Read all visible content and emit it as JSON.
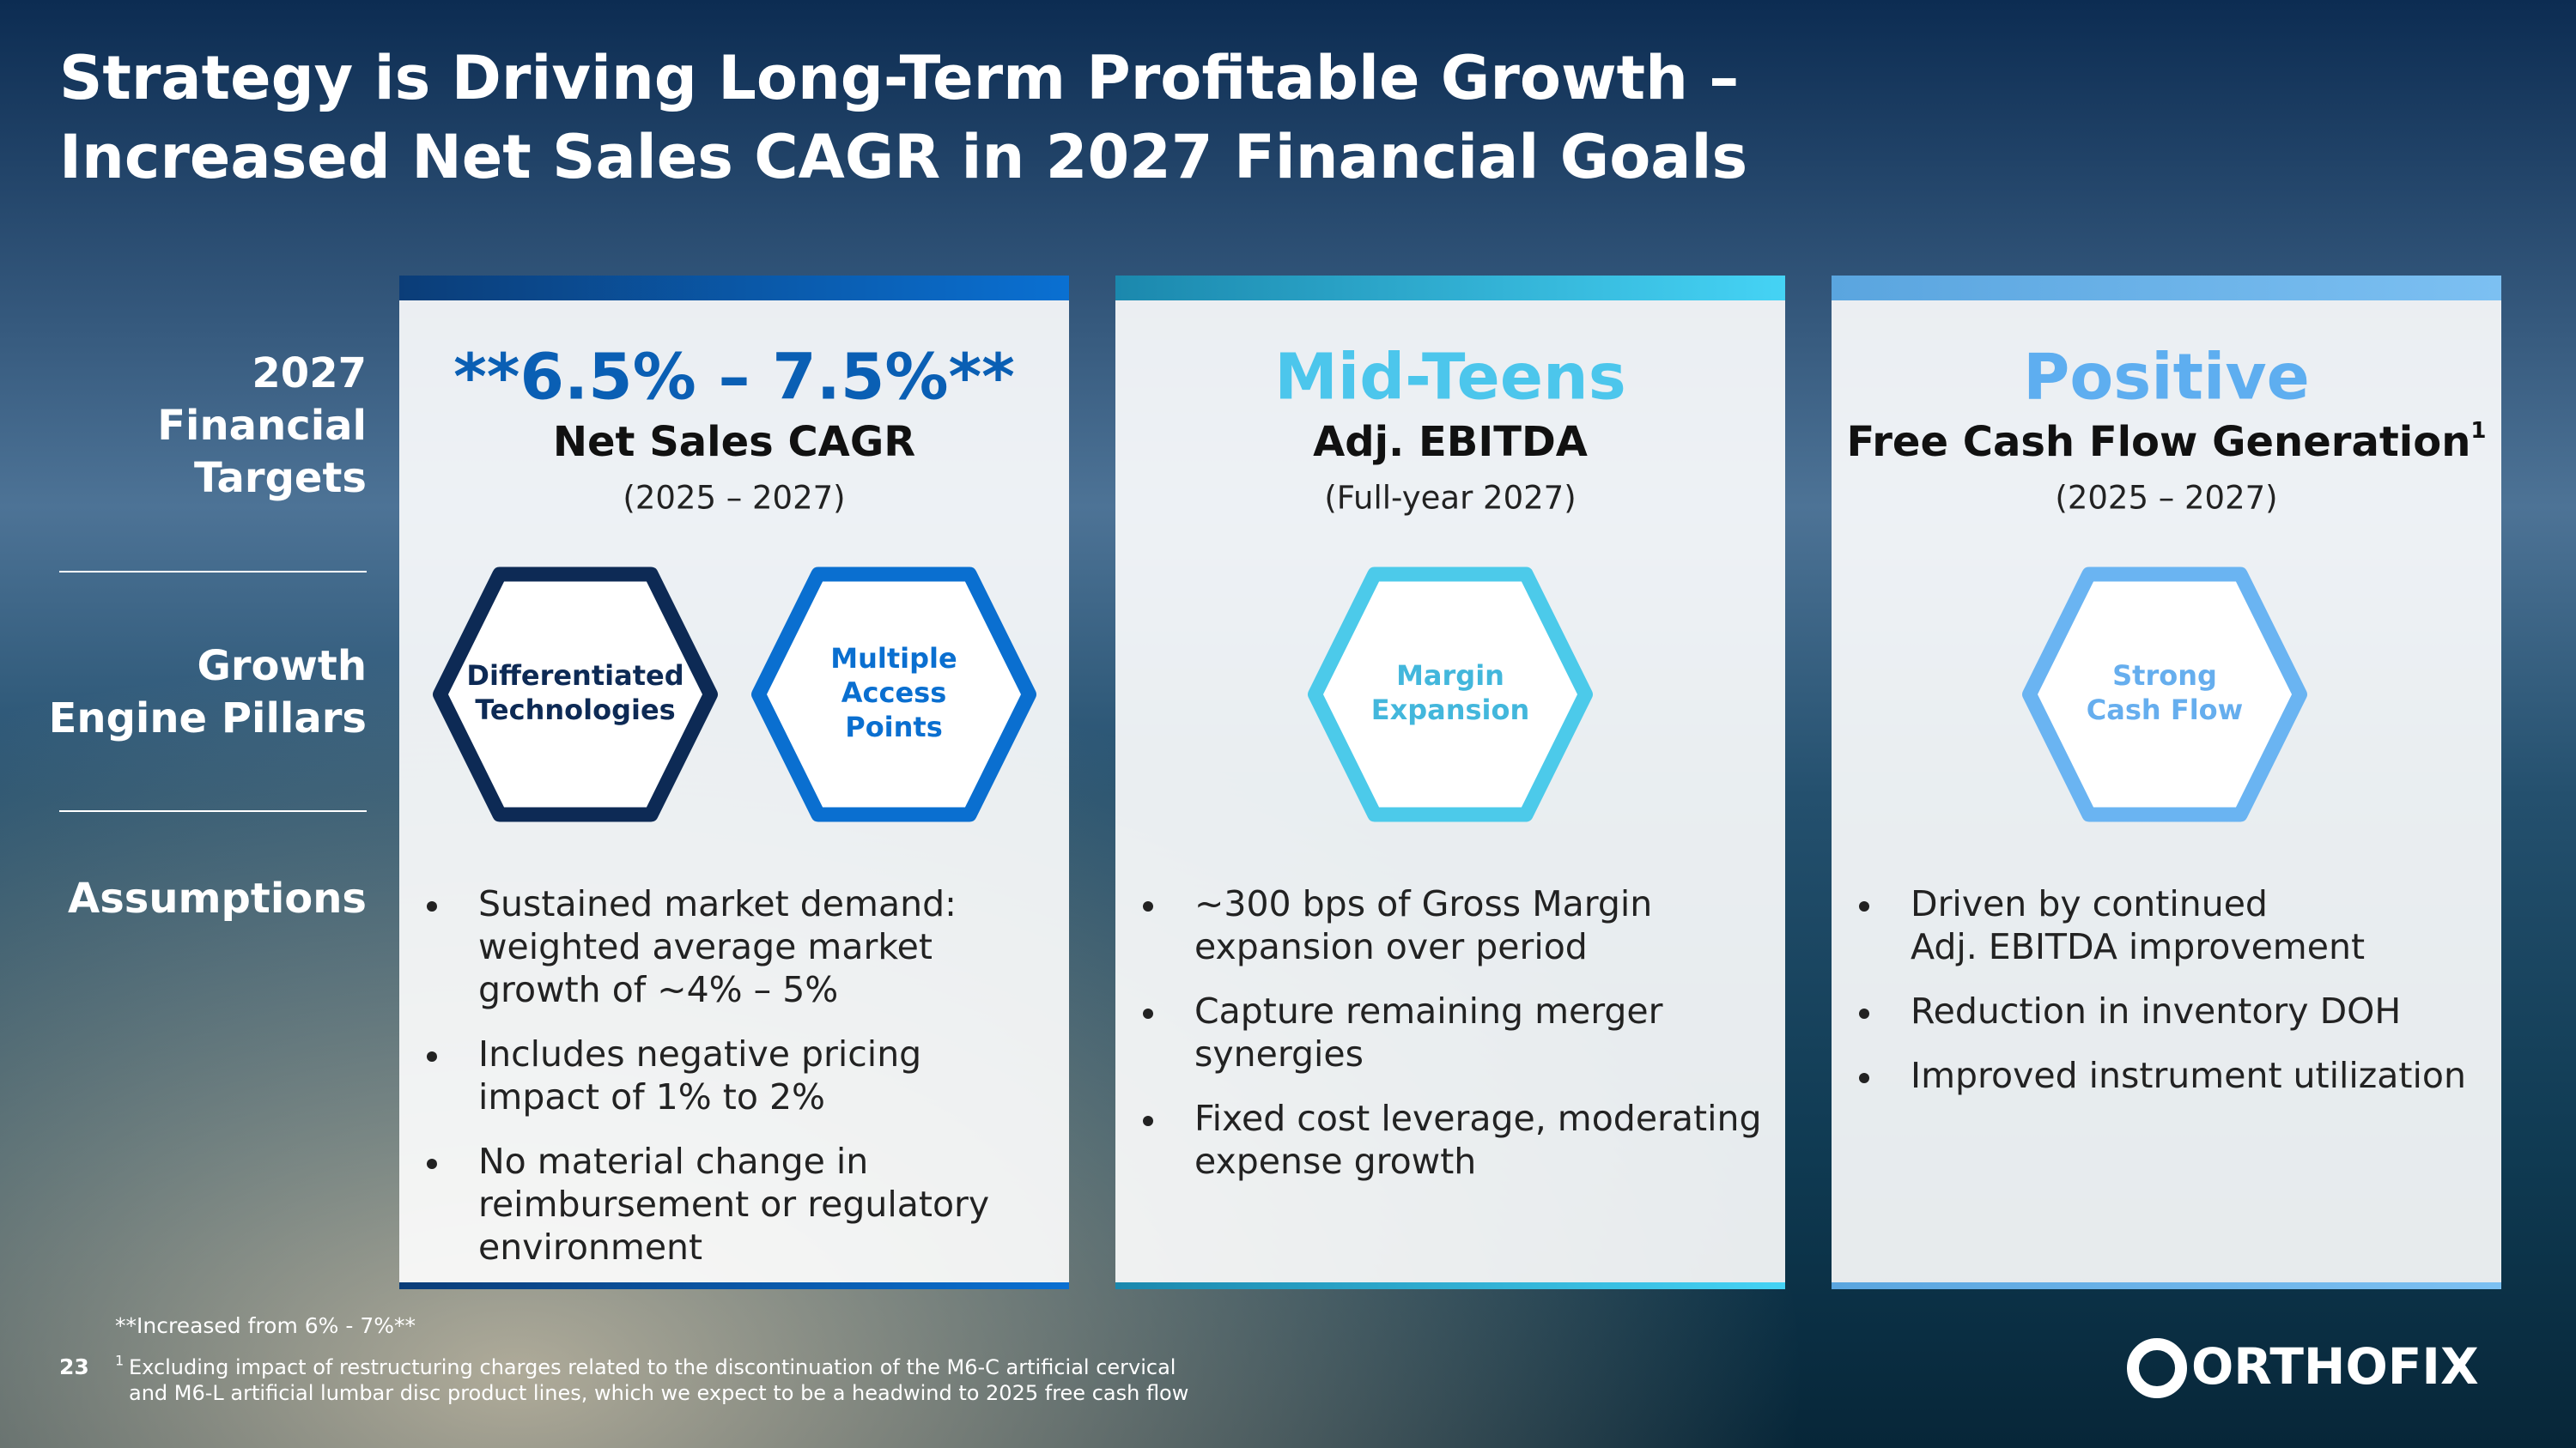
{
  "title": [
    "Strategy is Driving Long-Term Profitable Growth –",
    "Increased Net Sales CAGR in 2027 Financial Goals"
  ],
  "row_labels": [
    [
      "2027",
      "Financial",
      "Targets"
    ],
    [
      "Growth",
      "Engine Pillars"
    ],
    [
      "Assumptions"
    ]
  ],
  "columns": [
    {
      "headline": "**6.5% – 7.5%**",
      "metric": "Net Sales CAGR",
      "period": "(2025 – 2027)",
      "pillars": [
        [
          "Differentiated",
          "Technologies"
        ],
        [
          "Multiple",
          "Access",
          "Points"
        ]
      ],
      "bullets": [
        [
          "Sustained market demand:",
          "weighted average market",
          "growth of ~4% – 5%"
        ],
        [
          "Includes negative pricing",
          "impact of 1% to 2%"
        ],
        [
          "No material change in",
          "reimbursement or regulatory",
          "environment"
        ]
      ]
    },
    {
      "headline": "Mid-Teens",
      "metric": "Adj. EBITDA",
      "period": "(Full-year 2027)",
      "pillars": [
        [
          "Margin",
          "Expansion"
        ]
      ],
      "bullets": [
        [
          "~300 bps of Gross Margin",
          "expansion over period"
        ],
        [
          "Capture remaining merger",
          "synergies"
        ],
        [
          "Fixed cost leverage, moderating",
          "expense growth"
        ]
      ]
    },
    {
      "headline": "Positive",
      "metric": "Free Cash Flow Generation",
      "metric_note": "1",
      "period": "(2025 – 2027)",
      "pillars": [
        [
          "Strong",
          "Cash Flow"
        ]
      ],
      "bullets": [
        [
          "Driven by continued",
          "Adj. EBITDA improvement"
        ],
        [
          "Reduction in inventory DOH"
        ],
        [
          "Improved instrument utilization"
        ]
      ]
    }
  ],
  "footnotes": {
    "increased": "**Increased from 6% - 7%**",
    "marker": "1",
    "lines": [
      "Excluding impact of restructuring charges related to the discontinuation of the M6-C artificial cervical",
      "and M6-L artificial lumbar disc product lines, which we expect to be a headwind to 2025 free cash flow"
    ]
  },
  "page_number": "23",
  "logo": "ORTHOFIX"
}
